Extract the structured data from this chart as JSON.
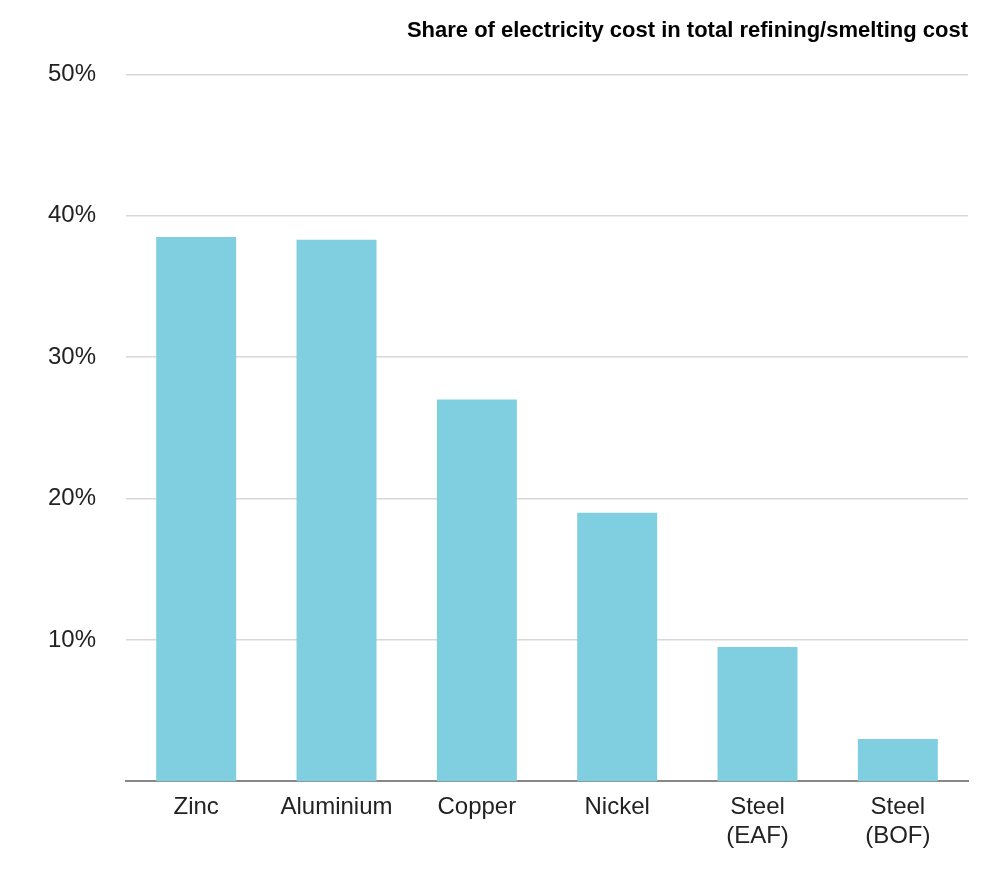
{
  "chart_data": {
    "type": "bar",
    "title": "Share of electricity cost in total refining/smelting cost",
    "categories": [
      "Zinc",
      "Aluminium",
      "Copper",
      "Nickel",
      "Steel (EAF)",
      "Steel (BOF)"
    ],
    "values": [
      38.5,
      38.3,
      27,
      19,
      9.5,
      3
    ],
    "color": "#80cfe0",
    "ylim": [
      0,
      50
    ],
    "yticks": [
      {
        "value": 10,
        "label": "10%"
      },
      {
        "value": 20,
        "label": "20%"
      },
      {
        "value": 30,
        "label": "30%"
      },
      {
        "value": 40,
        "label": "40%"
      },
      {
        "value": 50,
        "label": "50%"
      }
    ],
    "grid": "y",
    "legend": false
  }
}
